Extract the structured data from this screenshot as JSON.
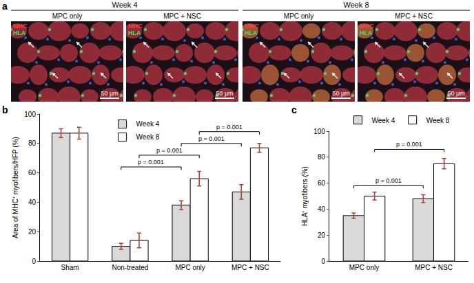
{
  "panel_a": {
    "label": "a",
    "groups": [
      {
        "title": "Week 4",
        "panels": [
          {
            "title": "MPC only",
            "stains": [
              "MHC",
              "HLA"
            ],
            "scale_bar": "50 µm"
          },
          {
            "title": "MPC + NSC",
            "stains": [
              "MHC",
              "HLA"
            ],
            "scale_bar": "50 µm"
          }
        ]
      },
      {
        "title": "Week 8",
        "panels": [
          {
            "title": "MPC only",
            "stains": [
              "MHC",
              "HLA"
            ],
            "scale_bar": "50 µm"
          },
          {
            "title": "MPC + NSC",
            "stains": [
              "MHC",
              "HLA"
            ],
            "scale_bar": "50 µm"
          }
        ]
      }
    ]
  },
  "chart_data": [
    {
      "panel": "b",
      "type": "bar",
      "categories": [
        "Sham",
        "Non-treated",
        "MPC only",
        "MPC + NSC"
      ],
      "series": [
        {
          "name": "Week 4",
          "color": "#d9d9d9",
          "values": [
            87,
            10,
            38,
            47
          ],
          "errors": [
            3,
            2,
            3,
            5
          ]
        },
        {
          "name": "Week 8",
          "color": "#ffffff",
          "values": [
            87,
            14,
            56,
            77
          ],
          "errors": [
            4,
            5,
            5,
            3
          ]
        }
      ],
      "y_label": "Area of MHC⁺ myofibers/HFP (%)",
      "ylim": [
        0,
        100
      ],
      "yticks": [
        0,
        20,
        40,
        60,
        80,
        100
      ],
      "legend": "upper center",
      "annotations": [
        {
          "text": "p = 0.001",
          "from": {
            "category": "Non-treated",
            "series": "Week 4"
          },
          "to": {
            "category": "MPC only",
            "series": "Week 4"
          },
          "y": 64
        },
        {
          "text": "p = 0.001",
          "from": {
            "category": "Non-treated",
            "series": "Week 8"
          },
          "to": {
            "category": "MPC only",
            "series": "Week 8"
          },
          "y": 72
        },
        {
          "text": "p = 0.001",
          "from": {
            "category": "MPC only",
            "series": "Week 4"
          },
          "to": {
            "category": "MPC + NSC",
            "series": "Week 4"
          },
          "y": 80
        },
        {
          "text": "p = 0.001",
          "from": {
            "category": "MPC only",
            "series": "Week 8"
          },
          "to": {
            "category": "MPC + NSC",
            "series": "Week 8"
          },
          "y": 88
        }
      ]
    },
    {
      "panel": "c",
      "type": "bar",
      "categories": [
        "MPC only",
        "MPC + NSC"
      ],
      "series": [
        {
          "name": "Week 4",
          "color": "#d9d9d9",
          "values": [
            35,
            48
          ],
          "errors": [
            2,
            3
          ]
        },
        {
          "name": "Week 8",
          "color": "#ffffff",
          "values": [
            50,
            75
          ],
          "errors": [
            3,
            4
          ]
        }
      ],
      "y_label": "HLA⁺ myofibers (%)",
      "ylim": [
        0,
        100
      ],
      "yticks": [
        0,
        20,
        40,
        60,
        80,
        100
      ],
      "legend": "top",
      "annotations": [
        {
          "text": "p = 0.001",
          "from": {
            "category": "MPC only",
            "series": "Week 4"
          },
          "to": {
            "category": "MPC + NSC",
            "series": "Week 4"
          },
          "y": 58
        },
        {
          "text": "p = 0.001",
          "from": {
            "category": "MPC only",
            "series": "Week 8"
          },
          "to": {
            "category": "MPC + NSC",
            "series": "Week 8"
          },
          "y": 86
        }
      ]
    }
  ]
}
